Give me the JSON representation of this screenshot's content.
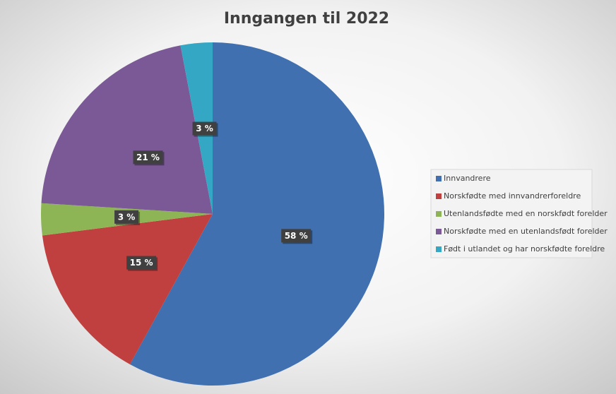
{
  "chart_data": {
    "type": "pie",
    "title": "Inngangen til 2022",
    "categories": [
      "Innvandrere",
      "Norskfødte med innvandrerforeldre",
      "Utenlandsfødte med en norskfødt forelder",
      "Norskfødte med en utenlandsfødt forelder",
      "Født i utlandet og har norskfødte foreldre"
    ],
    "values": [
      58,
      15,
      3,
      21,
      3
    ],
    "value_labels": [
      "58 %",
      "15 %",
      "3 %",
      "21 %",
      "3 %"
    ],
    "colors": [
      "#4070b0",
      "#c0403f",
      "#8db556",
      "#7a5996",
      "#33a7c3"
    ],
    "legend": "right"
  }
}
